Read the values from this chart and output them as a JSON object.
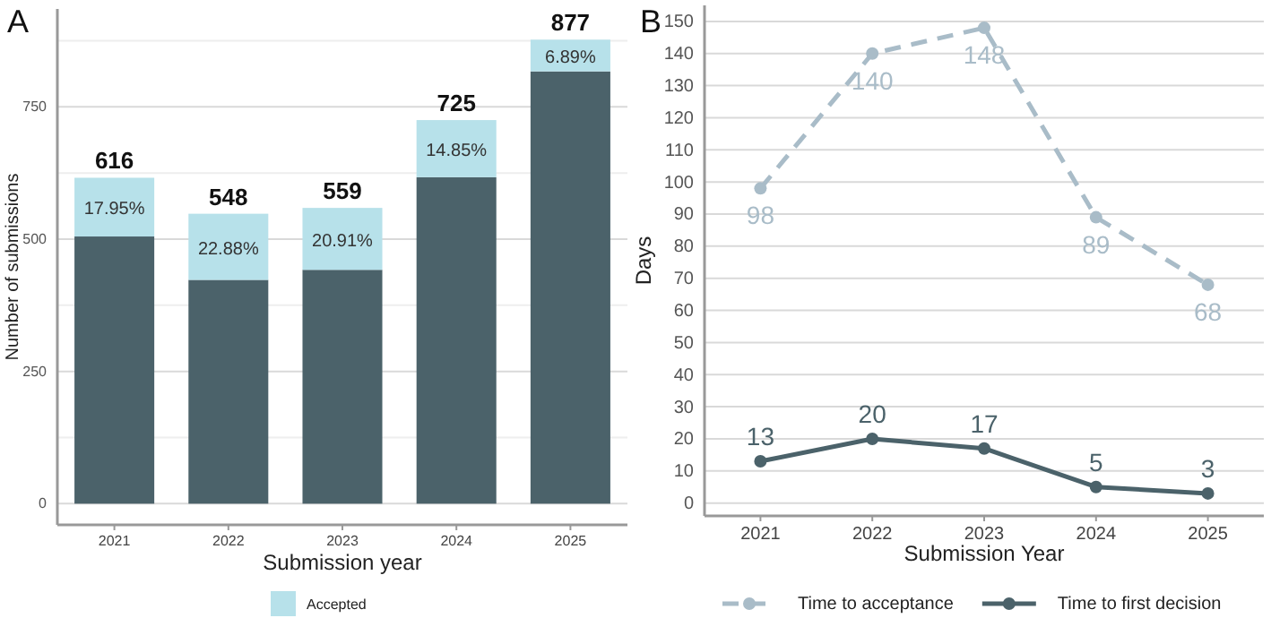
{
  "chart_data": [
    {
      "type": "bar",
      "title": "A",
      "xlabel": "Submission year",
      "ylabel": "Number of submissions",
      "categories": [
        "2021",
        "2022",
        "2023",
        "2024",
        "2025"
      ],
      "stacked": true,
      "series": [
        {
          "color": "#4b626a",
          "values": [
            505,
            423,
            442,
            617,
            817
          ]
        },
        {
          "name": "Accepted",
          "color": "#b7e1ea",
          "values": [
            111,
            125,
            117,
            108,
            60
          ]
        }
      ],
      "annotations": [
        "17.95%",
        "22.88%",
        "20.91%",
        "14.85%",
        "6.89%"
      ],
      "totals": [
        "616",
        "548",
        "559",
        "725",
        "877"
      ],
      "ylim": [
        -40,
        935
      ],
      "yticks": [
        0,
        {
          "value": 125,
          "label": null
        },
        250,
        {
          "value": 375,
          "label": null
        },
        500,
        {
          "value": 625,
          "label": null
        },
        750,
        {
          "value": 875,
          "label": null
        }
      ],
      "grid": "y",
      "legend": "bottom"
    },
    {
      "type": "line",
      "title": "B",
      "xlabel": "Submission Year",
      "ylabel": "Days",
      "categories": [
        "2021",
        "2022",
        "2023",
        "2024",
        "2025"
      ],
      "series": [
        {
          "name": "Time to acceptance",
          "color": "#a9bcc8",
          "line_style": "dashed",
          "values": [
            98,
            140,
            148,
            89,
            68
          ]
        },
        {
          "name": "Time to first decision",
          "color": "#4b626a",
          "line_style": "solid",
          "values": [
            13,
            20,
            17,
            5,
            3
          ]
        }
      ],
      "data_labels": true,
      "marker": "circle",
      "ylim": [
        -4,
        155
      ],
      "yticks": [
        0,
        10,
        20,
        30,
        40,
        50,
        60,
        70,
        80,
        90,
        100,
        110,
        120,
        130,
        140,
        150
      ],
      "grid": "y",
      "legend": "bottom"
    }
  ]
}
